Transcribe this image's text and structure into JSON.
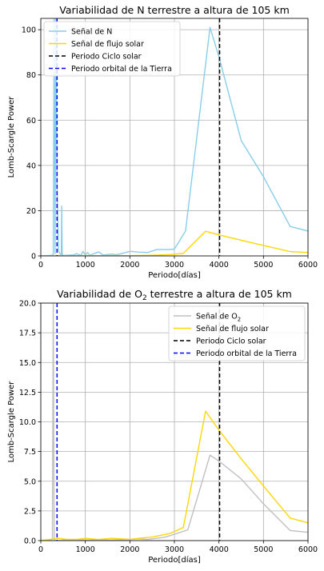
{
  "chart_data": [
    {
      "type": "line",
      "title": "Variabilidad de N terrestre a altura de 105 km",
      "xlabel": "Periodo[días]",
      "ylabel": "Lomb-Scargle Power",
      "xlim": [
        0,
        6000
      ],
      "ylim": [
        0,
        105
      ],
      "xticks": [
        "0",
        "1000",
        "2000",
        "3000",
        "4000",
        "5000",
        "6000"
      ],
      "yticks": [
        "0",
        "20",
        "40",
        "60",
        "80",
        "100"
      ],
      "grid": true,
      "legend_position": "upper-left",
      "series": [
        {
          "name": "Señal de N",
          "color": "#87ceeb",
          "x": [
            0,
            250,
            280,
            300,
            320,
            340,
            365,
            400,
            430,
            460,
            470,
            480,
            500,
            600,
            750,
            800,
            900,
            950,
            1000,
            1050,
            1100,
            1300,
            1400,
            1600,
            1700,
            1850,
            2000,
            2200,
            2400,
            2600,
            2850,
            3000,
            3250,
            3800,
            4000,
            4500,
            5000,
            5600,
            6000
          ],
          "y": [
            0,
            0.3,
            0.8,
            105,
            1,
            105,
            30,
            2,
            1,
            0.5,
            22,
            1,
            0.2,
            0.3,
            0.5,
            1.0,
            0.3,
            2.0,
            0.5,
            1.5,
            0.3,
            1.8,
            0.4,
            0.8,
            0.5,
            1.2,
            2.0,
            1.7,
            1.5,
            2.8,
            2.8,
            3.0,
            11,
            101,
            88,
            51,
            35,
            13,
            11
          ]
        },
        {
          "name": "Señal de flujo solar",
          "color": "#ffd700",
          "x": [
            0,
            200,
            400,
            600,
            800,
            1000,
            1300,
            1600,
            2000,
            2200,
            2500,
            2900,
            3200,
            3700,
            4000,
            4500,
            5000,
            5600,
            6000
          ],
          "y": [
            0,
            0.1,
            0.2,
            0.1,
            0.1,
            0.2,
            0.1,
            0.2,
            0.1,
            0.2,
            0.3,
            0.6,
            1.1,
            10.9,
            9.3,
            6.9,
            4.6,
            1.9,
            1.5
          ]
        }
      ],
      "vlines": [
        {
          "name": "Periodo Ciclo solar",
          "x": 4015,
          "color": "#000000"
        },
        {
          "name": "Periodo orbital de la Tierra",
          "x": 365,
          "color": "#0000ff"
        }
      ]
    },
    {
      "type": "line",
      "title": "Variabilidad de O",
      "title_sub": "2",
      "title_rest": " terrestre a altura de 105 km",
      "xlabel": "Periodo[días]",
      "ylabel": "Lomb-Scargle Power",
      "xlim": [
        0,
        6000
      ],
      "ylim": [
        0,
        20
      ],
      "xticks": [
        "0",
        "1000",
        "2000",
        "3000",
        "4000",
        "5000",
        "6000"
      ],
      "yticks": [
        "0.0",
        "2.5",
        "5.0",
        "7.5",
        "10.0",
        "12.5",
        "15.0",
        "17.5",
        "20.0"
      ],
      "grid": true,
      "legend_position": "upper-right",
      "series": [
        {
          "name": "Señal de O",
          "name_sub": "2",
          "color": "#c0c0c0",
          "x": [
            0,
            260,
            280,
            300,
            320,
            340,
            380,
            500,
            800,
            1000,
            1300,
            1600,
            2000,
            2200,
            2400,
            2800,
            3300,
            3800,
            4000,
            4500,
            5000,
            5600,
            6000
          ],
          "y": [
            0,
            0.1,
            20,
            0.1,
            0,
            0,
            0,
            0.05,
            0.05,
            0.05,
            0.05,
            0.05,
            0.1,
            0.15,
            0.1,
            0.3,
            0.9,
            7.2,
            6.7,
            5.2,
            3.1,
            0.85,
            0.7
          ],
          "note": ""
        },
        {
          "name": "Señal de flujo solar",
          "color": "#ffd700",
          "x": [
            0,
            200,
            400,
            600,
            800,
            1000,
            1300,
            1600,
            2000,
            2200,
            2500,
            2900,
            3200,
            3700,
            4000,
            4500,
            5000,
            5600,
            6000
          ],
          "y": [
            0,
            0.1,
            0.2,
            0.1,
            0.1,
            0.2,
            0.1,
            0.2,
            0.1,
            0.2,
            0.3,
            0.6,
            1.1,
            10.9,
            9.3,
            6.9,
            4.6,
            1.9,
            1.5
          ]
        }
      ],
      "vlines": [
        {
          "name": "Periodo Ciclo solar",
          "x": 4015,
          "color": "#000000"
        },
        {
          "name": "Periodo orbital de la Tierra",
          "x": 365,
          "color": "#0000ff"
        }
      ]
    }
  ]
}
